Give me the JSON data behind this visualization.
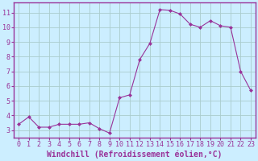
{
  "x": [
    0,
    1,
    2,
    3,
    4,
    5,
    6,
    7,
    8,
    9,
    10,
    11,
    12,
    13,
    14,
    15,
    16,
    17,
    18,
    19,
    20,
    21,
    22,
    23
  ],
  "y": [
    3.4,
    3.9,
    3.2,
    3.2,
    3.4,
    3.4,
    3.4,
    3.5,
    3.1,
    2.8,
    5.2,
    5.4,
    7.8,
    8.9,
    11.2,
    11.15,
    10.9,
    10.2,
    10.0,
    10.45,
    10.1,
    10.0,
    7.0,
    5.7
  ],
  "line_color": "#993399",
  "marker": "D",
  "marker_size": 2,
  "bg_color": "#cceeff",
  "grid_color": "#aacccc",
  "xlabel": "Windchill (Refroidissement éolien,°C)",
  "xlabel_fontsize": 7,
  "ylabel_ticks": [
    3,
    4,
    5,
    6,
    7,
    8,
    9,
    10,
    11
  ],
  "ylim": [
    2.5,
    11.7
  ],
  "xlim": [
    -0.5,
    23.5
  ],
  "xticks": [
    0,
    1,
    2,
    3,
    4,
    5,
    6,
    7,
    8,
    9,
    10,
    11,
    12,
    13,
    14,
    15,
    16,
    17,
    18,
    19,
    20,
    21,
    22,
    23
  ],
  "tick_fontsize": 6,
  "spine_color": "#993399",
  "title": ""
}
